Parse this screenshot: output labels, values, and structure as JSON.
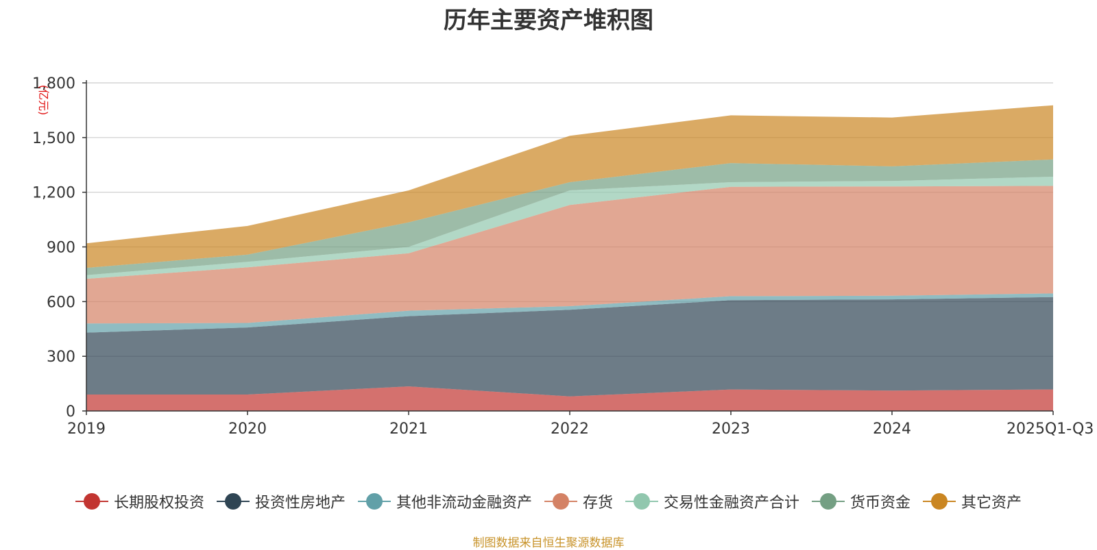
{
  "chart_data": {
    "type": "area",
    "stacked": true,
    "title": "历年主要资产堆积图",
    "ylabel": "(亿元)",
    "xlabel": "",
    "categories": [
      "2019",
      "2020",
      "2021",
      "2022",
      "2023",
      "2024",
      "2025Q1-Q3"
    ],
    "ylim": [
      0,
      1800
    ],
    "yticks": [
      0,
      300,
      600,
      900,
      1200,
      1500,
      1800
    ],
    "ytick_labels": [
      "0",
      "300",
      "600",
      "900",
      "1,200",
      "1,500",
      "1,800"
    ],
    "grid": true,
    "legend_position": "bottom",
    "series": [
      {
        "name": "长期股权投资",
        "color": "#c23531",
        "values": [
          90,
          90,
          135,
          80,
          118,
          112,
          118
        ]
      },
      {
        "name": "投资性房地产",
        "color": "#2f4554",
        "values": [
          340,
          368,
          385,
          475,
          490,
          500,
          507
        ]
      },
      {
        "name": "其他非流动金融资产",
        "color": "#61a0a8",
        "values": [
          50,
          25,
          30,
          20,
          22,
          20,
          20
        ]
      },
      {
        "name": "存货",
        "color": "#d48265",
        "values": [
          245,
          305,
          315,
          555,
          600,
          600,
          590
        ]
      },
      {
        "name": "交易性金融资产合计",
        "color": "#91c7ae",
        "values": [
          20,
          30,
          35,
          80,
          25,
          30,
          50
        ]
      },
      {
        "name": "货币资金",
        "color": "#749f83",
        "values": [
          40,
          40,
          135,
          45,
          105,
          80,
          95
        ]
      },
      {
        "name": "其它资产",
        "color": "#ca8622",
        "values": [
          135,
          157,
          175,
          255,
          262,
          268,
          297
        ]
      }
    ]
  },
  "source_note": "制图数据来自恒生聚源数据库"
}
